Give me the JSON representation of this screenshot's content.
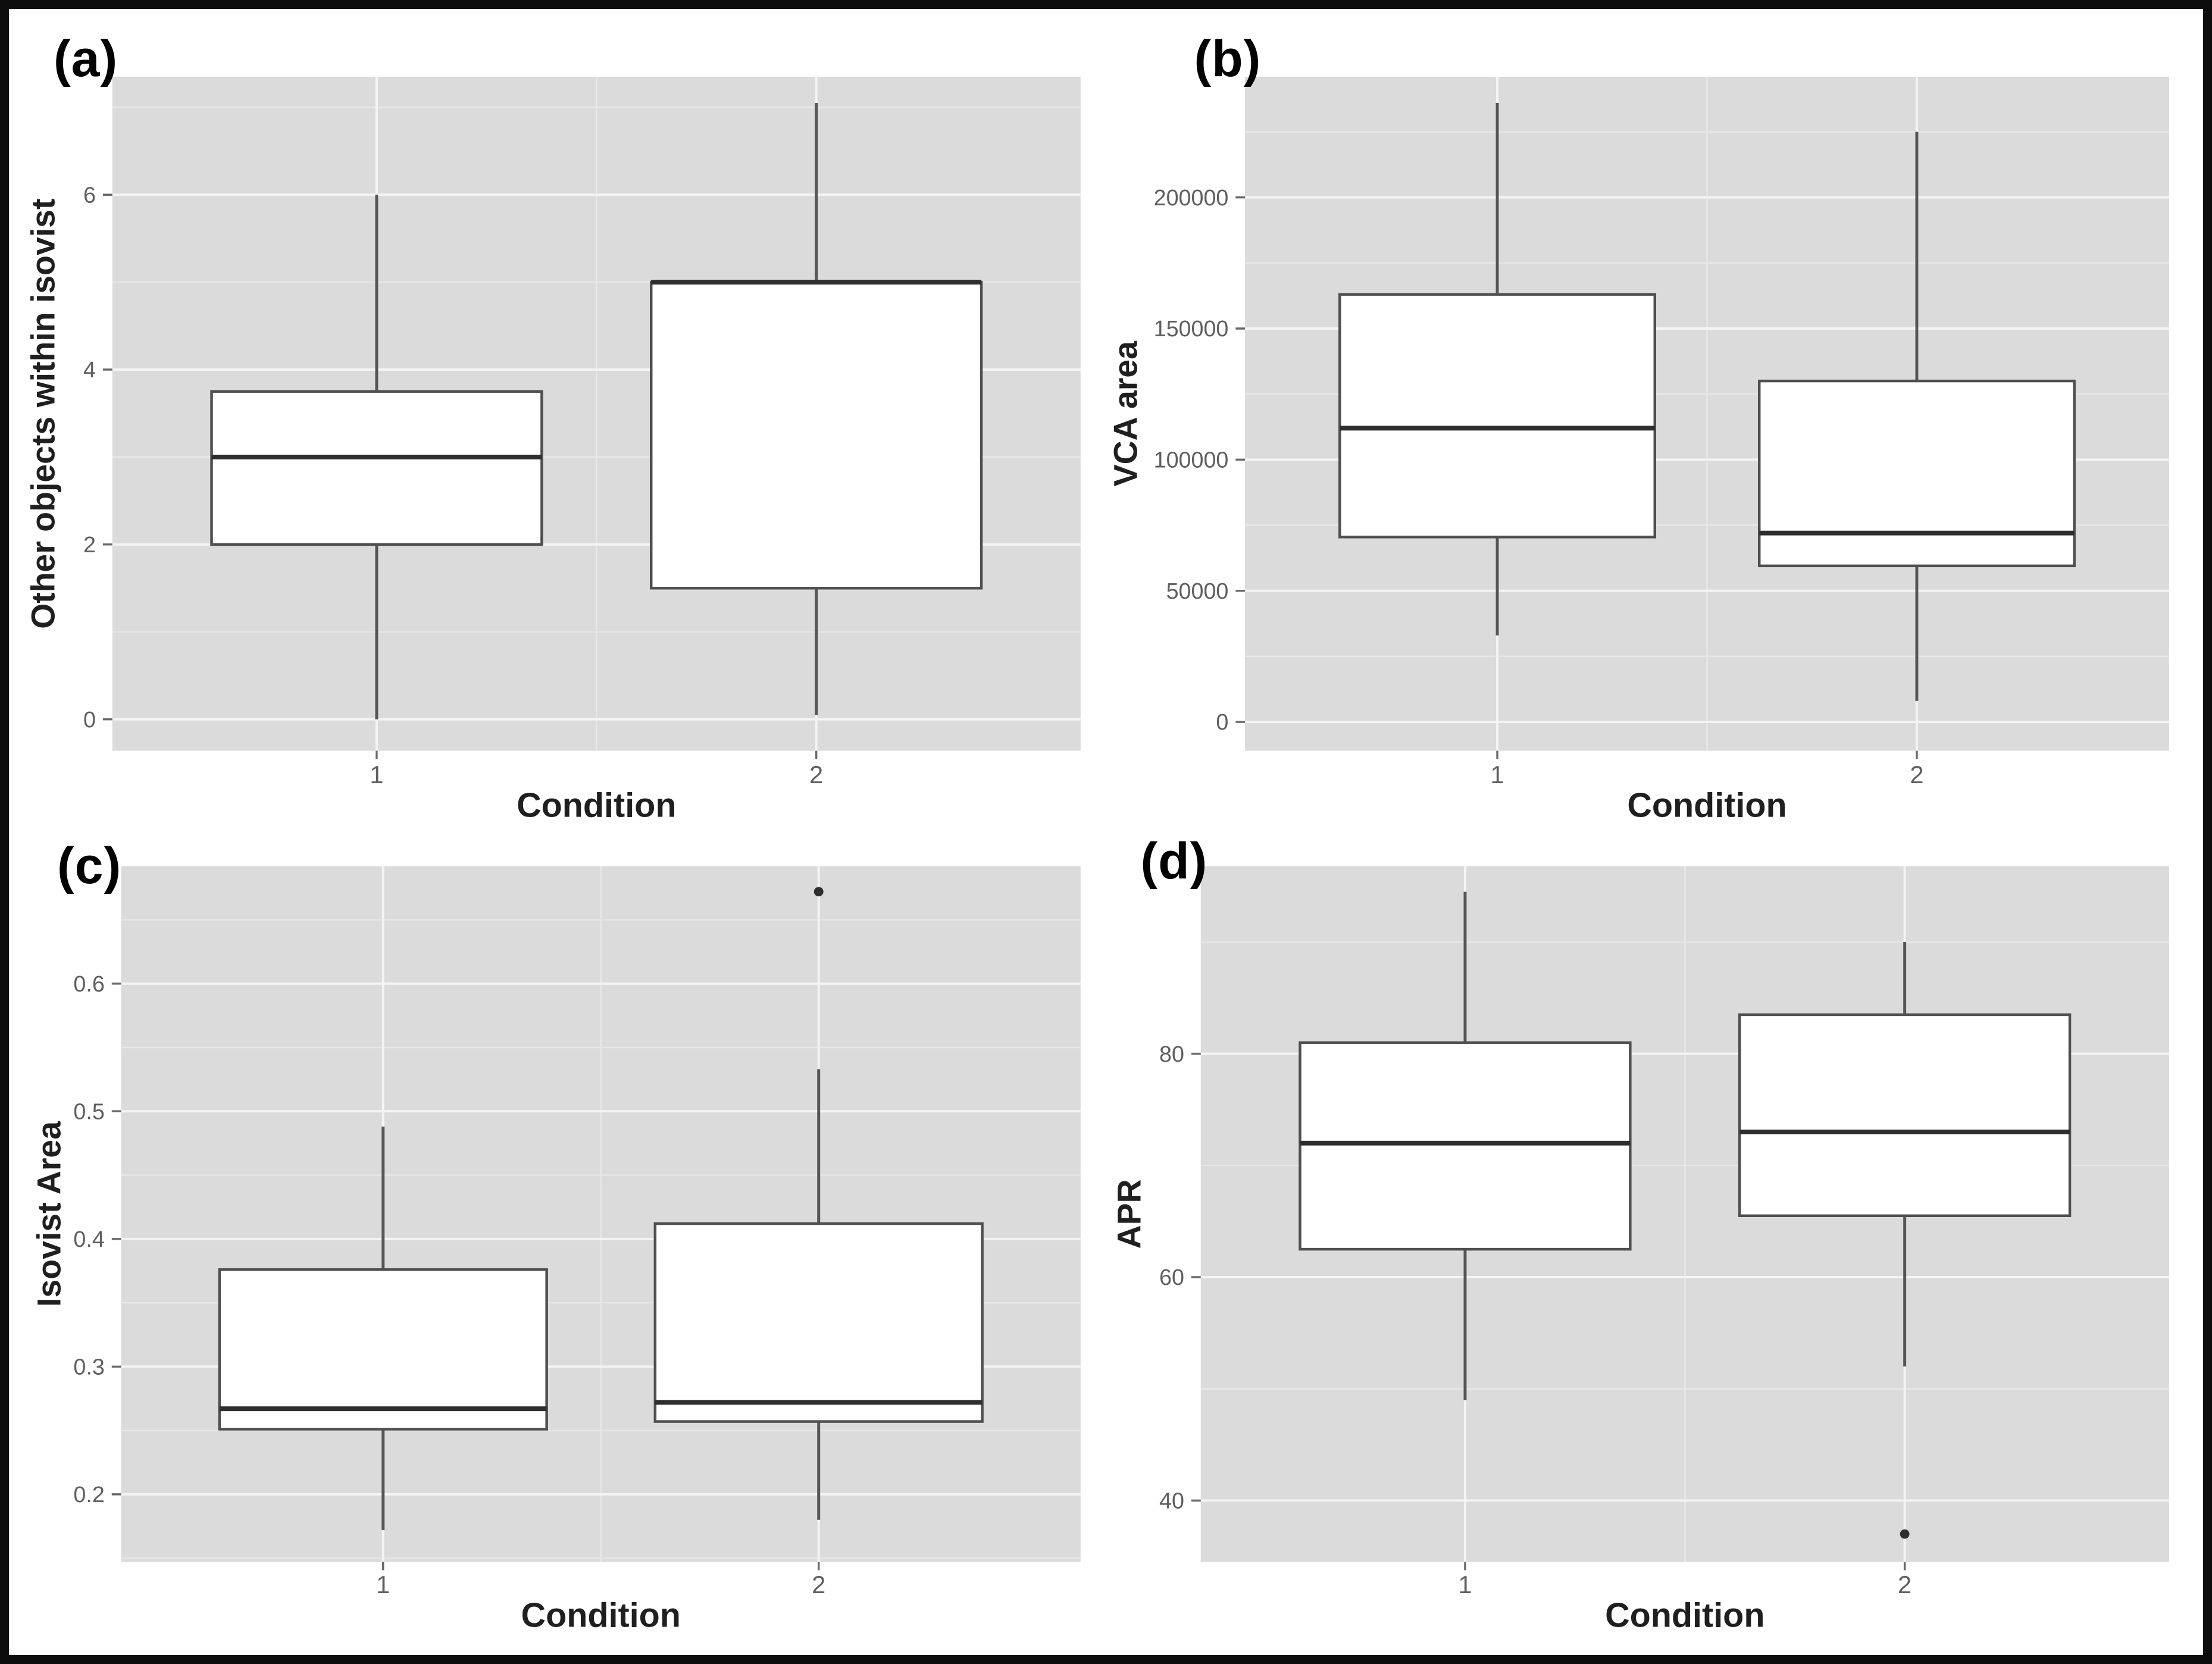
{
  "figure": {
    "background": "#ffffff",
    "border_color": "#0d0d0d",
    "panel_bg": "#dbdbdb",
    "grid_major_color": "#f4f4f4",
    "grid_minor_color": "#e7e7e7",
    "box_fill": "#ffffff",
    "box_stroke": "#4f4f4f",
    "median_color": "#2e2e2e",
    "whisker_color": "#565656",
    "outlier_color": "#2e2e2e",
    "tick_text_color": "#5f5f5f",
    "axis_title_color": "#1f1f1f",
    "tick_mark_color": "#6a6a6a"
  },
  "chart_data": [
    {
      "type": "boxplot",
      "panel_label": "(a)",
      "ylabel": "Other objects within isovist",
      "xlabel": "Condition",
      "categories": [
        "1",
        "2"
      ],
      "ylim": [
        -0.36,
        7.35
      ],
      "yticks": [
        0,
        2,
        4,
        6
      ],
      "ytick_labels": [
        "0",
        "2",
        "4",
        "6"
      ],
      "yticks_minor": [
        1,
        3,
        5,
        7
      ],
      "legend": "none",
      "grid": "major+minor",
      "boxes": [
        {
          "category": "1",
          "whisker_low": 0,
          "q1": 2,
          "median": 3,
          "q3": 3.75,
          "whisker_high": 6,
          "outliers": []
        },
        {
          "category": "2",
          "whisker_low": 0.05,
          "q1": 1.5,
          "median": 5,
          "q3": 5,
          "whisker_high": 7.05,
          "outliers": []
        }
      ]
    },
    {
      "type": "boxplot",
      "panel_label": "(b)",
      "ylabel": "VCA area",
      "xlabel": "Condition",
      "categories": [
        "1",
        "2"
      ],
      "ylim": [
        -11000,
        246000
      ],
      "yticks": [
        0,
        50000,
        100000,
        150000,
        200000
      ],
      "ytick_labels": [
        "0",
        "50000",
        "100000",
        "150000",
        "200000"
      ],
      "yticks_minor": [
        25000,
        75000,
        125000,
        175000,
        225000
      ],
      "legend": "none",
      "grid": "major+minor",
      "boxes": [
        {
          "category": "1",
          "whisker_low": 33000,
          "q1": 70500,
          "median": 112000,
          "q3": 163000,
          "whisker_high": 236000,
          "outliers": []
        },
        {
          "category": "2",
          "whisker_low": 8000,
          "q1": 59500,
          "median": 72000,
          "q3": 130000,
          "whisker_high": 225000,
          "outliers": []
        }
      ]
    },
    {
      "type": "boxplot",
      "panel_label": "(c)",
      "ylabel": "Isovist Area",
      "xlabel": "Condition",
      "categories": [
        "1",
        "2"
      ],
      "ylim": [
        0.147,
        0.692
      ],
      "yticks": [
        0.2,
        0.3,
        0.4,
        0.5,
        0.6
      ],
      "ytick_labels": [
        "0.2",
        "0.3",
        "0.4",
        "0.5",
        "0.6"
      ],
      "yticks_minor": [
        0.15,
        0.25,
        0.35,
        0.45,
        0.55,
        0.65
      ],
      "legend": "none",
      "grid": "major+minor",
      "boxes": [
        {
          "category": "1",
          "whisker_low": 0.172,
          "q1": 0.251,
          "median": 0.267,
          "q3": 0.376,
          "whisker_high": 0.488,
          "outliers": []
        },
        {
          "category": "2",
          "whisker_low": 0.18,
          "q1": 0.257,
          "median": 0.272,
          "q3": 0.412,
          "whisker_high": 0.533,
          "outliers": [
            0.672
          ]
        }
      ]
    },
    {
      "type": "boxplot",
      "panel_label": "(d)",
      "ylabel": "APR",
      "xlabel": "Condition",
      "categories": [
        "1",
        "2"
      ],
      "ylim": [
        34.5,
        96.8
      ],
      "yticks": [
        40,
        60,
        80
      ],
      "ytick_labels": [
        "40",
        "60",
        "80"
      ],
      "yticks_minor": [
        50,
        70,
        90
      ],
      "legend": "none",
      "grid": "major+minor",
      "boxes": [
        {
          "category": "1",
          "whisker_low": 49,
          "q1": 62.5,
          "median": 72,
          "q3": 81,
          "whisker_high": 94.5,
          "outliers": []
        },
        {
          "category": "2",
          "whisker_low": 52,
          "q1": 65.5,
          "median": 73,
          "q3": 83.5,
          "whisker_high": 90,
          "outliers": [
            37
          ]
        }
      ]
    }
  ]
}
